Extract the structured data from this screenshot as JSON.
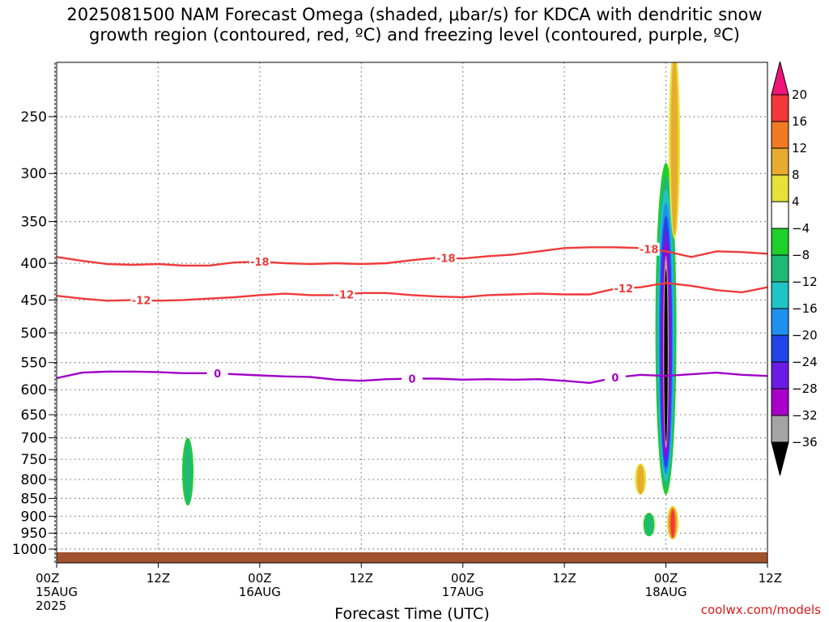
{
  "title_lines": [
    "2025081500 NAM Forecast Omega (shaded, μbar/s) for KDCA with dendritic snow",
    "growth region (contoured, red, ºC) and freezing level (contoured, purple, ºC)"
  ],
  "credit": "coolwx.com/models",
  "chart_data": {
    "type": "time-height",
    "xlabel": "Forecast Time (UTC)",
    "xlim_hours": [
      0,
      84
    ],
    "x_ticks": [
      {
        "hour": 0,
        "label": [
          "00Z",
          "15AUG",
          "2025"
        ]
      },
      {
        "hour": 12,
        "label": [
          "12Z"
        ]
      },
      {
        "hour": 24,
        "label": [
          "00Z",
          "16AUG"
        ]
      },
      {
        "hour": 36,
        "label": [
          "12Z"
        ]
      },
      {
        "hour": 48,
        "label": [
          "00Z",
          "17AUG"
        ]
      },
      {
        "hour": 60,
        "label": [
          "12Z"
        ]
      },
      {
        "hour": 72,
        "label": [
          "00Z",
          "18AUG"
        ]
      },
      {
        "hour": 84,
        "label": [
          "12Z"
        ]
      }
    ],
    "y_scale": "log-pressure (hPa), decreasing upward",
    "ylim_hpa": [
      1050,
      200
    ],
    "y_ticks": [
      250,
      300,
      350,
      400,
      450,
      500,
      550,
      600,
      650,
      700,
      750,
      800,
      850,
      900,
      950,
      1000
    ],
    "grid": true,
    "colorbar": {
      "units": "μbar/s",
      "labels": [
        "20",
        "16",
        "12",
        "8",
        "4",
        "−4",
        "−8",
        "−12",
        "−16",
        "−20",
        "−24",
        "−28",
        "−32",
        "−36"
      ],
      "colors": [
        "#ee1679",
        "#f23838",
        "#ef7a24",
        "#e7ab2f",
        "#e5e138",
        "#ffffff",
        "#1fcf2a",
        "#1fb876",
        "#20c4c4",
        "#2090ef",
        "#2046e9",
        "#6b1be6",
        "#a800c8",
        "#a4a4a4",
        "#000000"
      ]
    },
    "contours_dgz": [
      {
        "value": -18,
        "label": "-18",
        "color": "#ef3a3a",
        "points": [
          [
            0,
            392
          ],
          [
            3,
            397
          ],
          [
            6,
            401
          ],
          [
            9,
            402
          ],
          [
            12,
            401
          ],
          [
            15,
            403
          ],
          [
            18,
            403
          ],
          [
            21,
            399
          ],
          [
            24,
            398
          ],
          [
            27,
            400
          ],
          [
            30,
            401
          ],
          [
            33,
            400
          ],
          [
            36,
            401
          ],
          [
            39,
            400
          ],
          [
            42,
            396
          ],
          [
            45,
            393
          ],
          [
            48,
            394
          ],
          [
            51,
            391
          ],
          [
            54,
            389
          ],
          [
            57,
            385
          ],
          [
            60,
            381
          ],
          [
            63,
            380
          ],
          [
            66,
            380
          ],
          [
            69,
            381
          ],
          [
            72,
            385
          ],
          [
            75,
            392
          ],
          [
            78,
            385
          ],
          [
            81,
            386
          ],
          [
            84,
            388
          ]
        ]
      },
      {
        "value": -12,
        "label": "-12",
        "color": "#ef3a3a",
        "points": [
          [
            0,
            444
          ],
          [
            3,
            448
          ],
          [
            6,
            451
          ],
          [
            9,
            450
          ],
          [
            12,
            451
          ],
          [
            15,
            450
          ],
          [
            18,
            448
          ],
          [
            21,
            446
          ],
          [
            24,
            443
          ],
          [
            27,
            441
          ],
          [
            30,
            443
          ],
          [
            33,
            443
          ],
          [
            36,
            440
          ],
          [
            39,
            440
          ],
          [
            42,
            443
          ],
          [
            45,
            445
          ],
          [
            48,
            446
          ],
          [
            51,
            443
          ],
          [
            54,
            442
          ],
          [
            57,
            441
          ],
          [
            60,
            442
          ],
          [
            63,
            442
          ],
          [
            66,
            434
          ],
          [
            69,
            432
          ],
          [
            72,
            426
          ],
          [
            75,
            430
          ],
          [
            78,
            436
          ],
          [
            81,
            439
          ],
          [
            84,
            432
          ]
        ]
      }
    ],
    "contour_freezing": {
      "value": 0,
      "label": "0",
      "color": "#a000c8",
      "points": [
        [
          0,
          578
        ],
        [
          3,
          568
        ],
        [
          6,
          566
        ],
        [
          9,
          566
        ],
        [
          12,
          567
        ],
        [
          15,
          569
        ],
        [
          18,
          569
        ],
        [
          21,
          571
        ],
        [
          24,
          573
        ],
        [
          27,
          575
        ],
        [
          30,
          576
        ],
        [
          33,
          581
        ],
        [
          36,
          583
        ],
        [
          39,
          580
        ],
        [
          42,
          579
        ],
        [
          45,
          579
        ],
        [
          48,
          581
        ],
        [
          51,
          580
        ],
        [
          54,
          581
        ],
        [
          57,
          580
        ],
        [
          60,
          583
        ],
        [
          63,
          587
        ],
        [
          66,
          577
        ],
        [
          69,
          572
        ],
        [
          72,
          574
        ],
        [
          75,
          571
        ],
        [
          78,
          568
        ],
        [
          81,
          572
        ],
        [
          84,
          574
        ]
      ]
    },
    "surface_pressure_hpa": 1010,
    "omega_features": [
      {
        "kind": "updraft",
        "hour": 72,
        "top_hpa": 290,
        "bottom_hpa": 840,
        "min_value": -36
      },
      {
        "kind": "updraft",
        "hour": 15.5,
        "top_hpa": 700,
        "bottom_hpa": 870,
        "min_value": -8
      },
      {
        "kind": "updraft",
        "hour": 70,
        "top_hpa": 890,
        "bottom_hpa": 960,
        "min_value": -8
      },
      {
        "kind": "subsidence",
        "hour": 72.8,
        "top_hpa": 870,
        "bottom_hpa": 970,
        "max_value": 16
      },
      {
        "kind": "subsidence",
        "hour": 73,
        "top_hpa": 200,
        "bottom_hpa": 370,
        "max_value": 8
      },
      {
        "kind": "subsidence",
        "hour": 69,
        "top_hpa": 760,
        "bottom_hpa": 840,
        "max_value": 8
      }
    ]
  }
}
